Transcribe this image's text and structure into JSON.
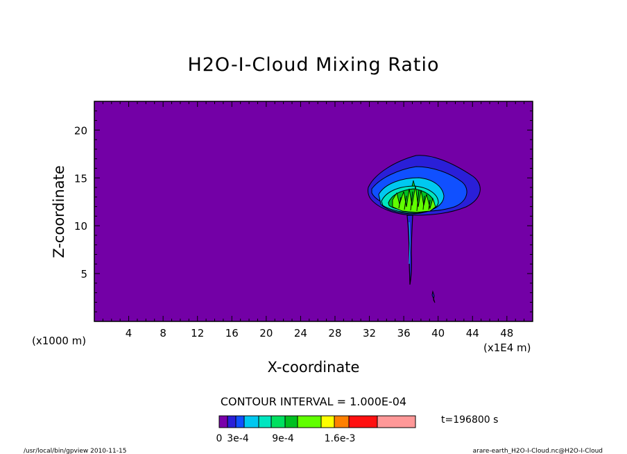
{
  "chart_data": {
    "type": "heatmap",
    "title": "H2O-I-Cloud Mixing Ratio",
    "xlabel": "X-coordinate",
    "ylabel": "Z-coordinate",
    "x_unit": "(x1E4 m)",
    "y_unit": "(x1000 m)",
    "xlim": [
      0,
      51
    ],
    "ylim": [
      0,
      23
    ],
    "xticks": [
      "4",
      "8",
      "12",
      "16",
      "20",
      "24",
      "28",
      "32",
      "36",
      "40",
      "44",
      "48"
    ],
    "yticks": [
      "5",
      "10",
      "15",
      "20"
    ],
    "contour_interval": "CONTOUR INTERVAL = 1.000E-04",
    "time_label": "t=196800  s",
    "legend_labels": [
      "0",
      "3e-4",
      "9e-4",
      "1.6e-3"
    ],
    "levels": [
      0,
      0.0001,
      0.0002,
      0.0003,
      0.0004,
      0.0006,
      0.0008,
      0.001,
      0.0012,
      0.0014,
      0.0016,
      0.0019
    ],
    "background_value": 0,
    "features": [
      {
        "name": "anvil-outer",
        "x": 38.5,
        "y": 14.2,
        "value": 0.0002
      },
      {
        "name": "anvil-level-2",
        "x": 37.8,
        "y": 13.7,
        "value": 0.0003
      },
      {
        "name": "anvil-level-3",
        "x": 37.0,
        "y": 13.0,
        "value": 0.0004
      },
      {
        "name": "anvil-core",
        "x": 36.8,
        "y": 12.8,
        "value": 0.0008
      },
      {
        "name": "updraft-column",
        "x": 36.9,
        "y": 8.0,
        "value": 0.0001
      },
      {
        "name": "small-cell",
        "x": 39.7,
        "y": 2.5,
        "value": 0.0001
      }
    ],
    "colors": {
      "background": "#7300a6",
      "scale": [
        "#7a00aa",
        "#2a1fd8",
        "#1050ff",
        "#00c8f0",
        "#00e6c0",
        "#00e060",
        "#00c020",
        "#60ff00",
        "#ffff00",
        "#ff8000",
        "#ff1010",
        "#ff9898"
      ]
    },
    "grid": false,
    "legend_position": "bottom"
  },
  "footer": {
    "left": "/usr/local/bin/gpview   2010-11-15",
    "right": "arare-earth_H2O-I-Cloud.nc@H2O-I-Cloud"
  }
}
